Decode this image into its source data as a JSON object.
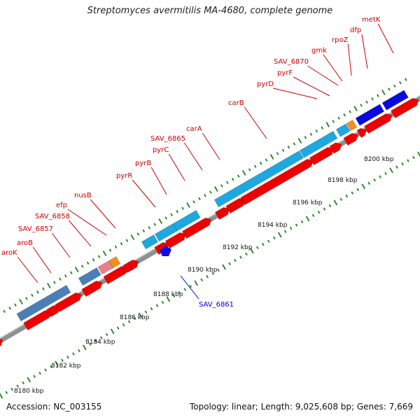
{
  "title": "Streptomyces avermitilis MA-4680, complete genome",
  "footer": {
    "accession": "Accession: NC_003155",
    "topology": "Topology: linear; Length: 9,025,608 bp; Genes: 7,669"
  },
  "colors": {
    "background": "#ffffff",
    "backbone": "#909090",
    "ticks": "#2e8b2e",
    "gene_labels": "#cc0000",
    "highlight_label": "#0000cc",
    "steelblue": "#4a7fb8",
    "lightblue": "#1ea8e0",
    "pink": "#e88088",
    "orange": "#f09020",
    "darkblue": "#0a0ae0",
    "red": "#ee0000"
  },
  "scale_labels": [
    "8180 kbp",
    "8182 kbp",
    "8184 kbp",
    "8186 kbp",
    "8188 kbp",
    "8190 kbp",
    "8192 kbp",
    "8194 kbp",
    "8196 kbp",
    "8198 kbp",
    "8200 kbp"
  ],
  "gene_labels": [
    "aroK",
    "aroB",
    "SAV_6857",
    "SAV_6858",
    "efp",
    "nusB",
    "pyrR",
    "pyrB",
    "pyrC",
    "SAV_6865",
    "carA",
    "carB",
    "pyrD",
    "pyrF",
    "SAV_6870",
    "gmk",
    "rpoZ",
    "dfp",
    "metK"
  ],
  "highlight_label": "SAV_6861"
}
